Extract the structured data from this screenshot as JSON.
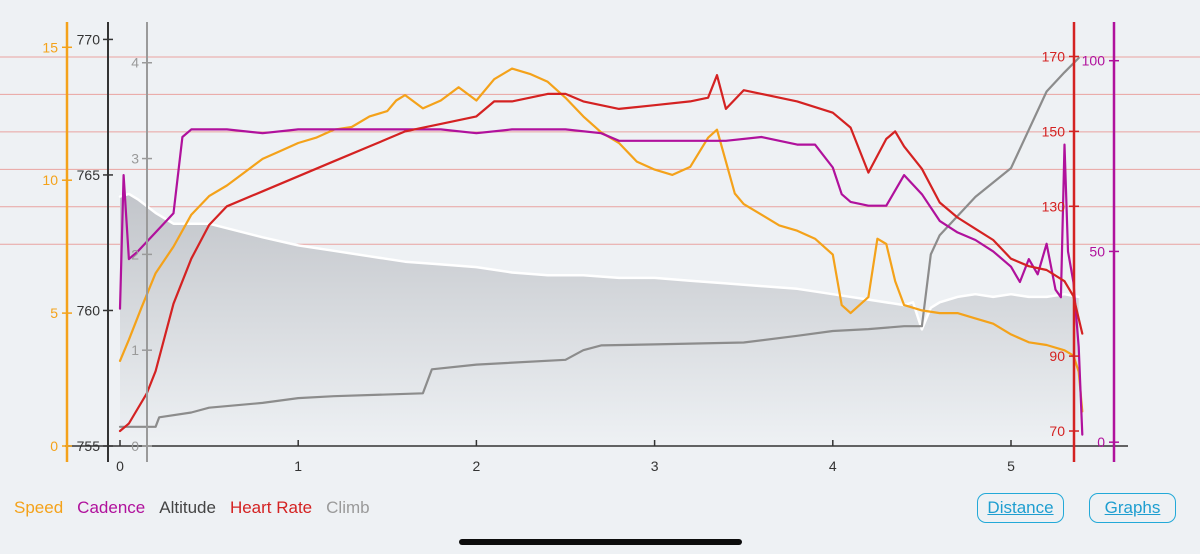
{
  "chart_data": {
    "type": "line",
    "x_axis": {
      "label": "",
      "range": [
        -0.1,
        5.75
      ],
      "ticks": [
        "0",
        "1",
        "2",
        "3",
        "4",
        "5"
      ]
    },
    "axes": {
      "speed": {
        "range": [
          0,
          15.5
        ],
        "ticks": [
          "0",
          "5",
          "10",
          "15"
        ],
        "color": "#f4a21a"
      },
      "altitude": {
        "range": [
          755,
          770.2
        ],
        "ticks": [
          "755",
          "760",
          "765",
          "770"
        ],
        "color": "#333333"
      },
      "climb": {
        "range": [
          0,
          4.3
        ],
        "ticks": [
          "0",
          "1",
          "2",
          "3",
          "4"
        ],
        "color": "#9a9a9a"
      },
      "heartrate": {
        "range": [
          66,
          176
        ],
        "ticks": [
          "70",
          "90",
          "130",
          "150",
          "170"
        ],
        "color": "#d42222"
      },
      "cadence": {
        "range": [
          -1,
          107
        ],
        "ticks": [
          "0",
          "50",
          "100"
        ],
        "color": "#b0119c"
      }
    },
    "series": [
      {
        "name": "Speed",
        "axis": "speed",
        "color": "#f4a21a",
        "x": [
          0,
          0.05,
          0.12,
          0.2,
          0.3,
          0.4,
          0.5,
          0.6,
          0.7,
          0.8,
          0.9,
          1.0,
          1.1,
          1.2,
          1.3,
          1.4,
          1.5,
          1.55,
          1.6,
          1.7,
          1.8,
          1.9,
          2.0,
          2.1,
          2.2,
          2.3,
          2.4,
          2.5,
          2.6,
          2.7,
          2.8,
          2.9,
          3.0,
          3.1,
          3.2,
          3.3,
          3.35,
          3.4,
          3.45,
          3.5,
          3.6,
          3.7,
          3.8,
          3.9,
          4.0,
          4.05,
          4.1,
          4.2,
          4.25,
          4.3,
          4.35,
          4.4,
          4.5,
          4.6,
          4.7,
          4.8,
          4.9,
          5.0,
          5.1,
          5.2,
          5.3,
          5.35,
          5.38,
          5.4
        ],
        "values": [
          3.2,
          4.0,
          5.2,
          6.5,
          7.5,
          8.7,
          9.4,
          9.8,
          10.3,
          10.8,
          11.1,
          11.4,
          11.6,
          11.9,
          12.0,
          12.4,
          12.6,
          13.0,
          13.2,
          12.7,
          13.0,
          13.5,
          13.0,
          13.8,
          14.2,
          14.0,
          13.7,
          13.1,
          12.4,
          11.8,
          11.4,
          10.7,
          10.4,
          10.2,
          10.5,
          11.6,
          11.9,
          10.7,
          9.5,
          9.1,
          8.7,
          8.3,
          8.1,
          7.8,
          7.2,
          5.3,
          5.0,
          5.6,
          7.8,
          7.6,
          6.2,
          5.3,
          5.1,
          5.0,
          5.0,
          4.8,
          4.6,
          4.2,
          3.9,
          3.8,
          3.6,
          3.4,
          2.8,
          1.3
        ]
      },
      {
        "name": "Cadence",
        "axis": "cadence",
        "color": "#b0119c",
        "x": [
          0,
          0.02,
          0.05,
          0.1,
          0.2,
          0.3,
          0.35,
          0.4,
          0.5,
          0.6,
          0.8,
          1.0,
          1.2,
          1.5,
          1.8,
          2.0,
          2.2,
          2.5,
          2.7,
          2.8,
          3.0,
          3.2,
          3.4,
          3.6,
          3.8,
          3.9,
          4.0,
          4.05,
          4.1,
          4.2,
          4.3,
          4.4,
          4.5,
          4.6,
          4.7,
          4.8,
          4.9,
          5.0,
          5.05,
          5.1,
          5.15,
          5.2,
          5.25,
          5.28,
          5.3,
          5.32,
          5.35,
          5.38,
          5.4
        ],
        "values": [
          35,
          70,
          48,
          50,
          55,
          60,
          80,
          82,
          82,
          82,
          81,
          82,
          82,
          82,
          82,
          81,
          82,
          82,
          81,
          79,
          79,
          79,
          79,
          80,
          78,
          78,
          72,
          65,
          63,
          62,
          62,
          70,
          65,
          58,
          55,
          53,
          50,
          46,
          42,
          48,
          44,
          52,
          40,
          38,
          78,
          50,
          42,
          25,
          2
        ]
      },
      {
        "name": "Altitude",
        "axis": "altitude",
        "color": "#ffffff",
        "x": [
          0,
          0.05,
          0.1,
          0.2,
          0.3,
          0.5,
          0.8,
          1.0,
          1.2,
          1.4,
          1.6,
          1.8,
          2.0,
          2.2,
          2.4,
          2.6,
          2.8,
          3.0,
          3.2,
          3.4,
          3.6,
          3.8,
          4.0,
          4.2,
          4.4,
          4.45,
          4.5,
          4.55,
          4.6,
          4.7,
          4.8,
          4.9,
          5.0,
          5.1,
          5.2,
          5.3,
          5.38
        ],
        "values": [
          764.2,
          764.3,
          764.1,
          763.6,
          763.2,
          763.2,
          762.7,
          762.4,
          762.2,
          762.0,
          761.8,
          761.7,
          761.6,
          761.4,
          761.3,
          761.3,
          761.2,
          761.2,
          761.1,
          761.0,
          760.9,
          760.8,
          760.6,
          760.4,
          760.2,
          760.3,
          759.3,
          760.1,
          760.3,
          760.5,
          760.6,
          760.5,
          760.6,
          760.5,
          760.5,
          760.6,
          760.5
        ]
      },
      {
        "name": "Heart Rate",
        "axis": "heartrate",
        "color": "#d42222",
        "x": [
          0,
          0.05,
          0.1,
          0.15,
          0.2,
          0.3,
          0.4,
          0.5,
          0.6,
          0.8,
          1.0,
          1.2,
          1.4,
          1.5,
          1.6,
          1.8,
          2.0,
          2.1,
          2.2,
          2.3,
          2.4,
          2.5,
          2.6,
          2.8,
          3.0,
          3.2,
          3.3,
          3.35,
          3.4,
          3.5,
          3.6,
          3.8,
          4.0,
          4.1,
          4.2,
          4.3,
          4.35,
          4.4,
          4.5,
          4.6,
          4.7,
          4.8,
          4.9,
          5.0,
          5.1,
          5.2,
          5.3,
          5.35,
          5.4
        ],
        "values": [
          70,
          72,
          76,
          80,
          86,
          104,
          116,
          125,
          130,
          134,
          138,
          142,
          146,
          148,
          150,
          152,
          154,
          158,
          158,
          159,
          160,
          160,
          158,
          156,
          157,
          158,
          159,
          165,
          156,
          161,
          160,
          158,
          155,
          151,
          139,
          148,
          150,
          146,
          140,
          131,
          127,
          124,
          121,
          116,
          114,
          113,
          110,
          106,
          96
        ]
      },
      {
        "name": "Climb",
        "axis": "climb",
        "color": "#8c8c8c",
        "x": [
          0,
          0.2,
          0.22,
          0.4,
          0.5,
          0.8,
          1.0,
          1.2,
          1.7,
          1.75,
          2.0,
          2.5,
          2.6,
          2.7,
          3.0,
          3.5,
          3.8,
          4.0,
          4.2,
          4.4,
          4.5,
          4.55,
          4.6,
          4.8,
          5.0,
          5.1,
          5.2,
          5.3,
          5.38
        ],
        "values": [
          0.2,
          0.2,
          0.3,
          0.35,
          0.4,
          0.45,
          0.5,
          0.52,
          0.55,
          0.8,
          0.85,
          0.9,
          1.0,
          1.05,
          1.06,
          1.08,
          1.15,
          1.2,
          1.22,
          1.25,
          1.25,
          2.0,
          2.2,
          2.6,
          2.9,
          3.3,
          3.7,
          3.9,
          4.05
        ]
      }
    ],
    "grid": "horizontal-red"
  },
  "legend": {
    "speed": "Speed",
    "cadence": "Cadence",
    "altitude": "Altitude",
    "heart_rate": "Heart Rate",
    "climb": "Climb"
  },
  "buttons": {
    "distance": "Distance",
    "graphs": "Graphs"
  },
  "colors": {
    "background": "#eef1f4",
    "button_border": "#23a9d8"
  }
}
